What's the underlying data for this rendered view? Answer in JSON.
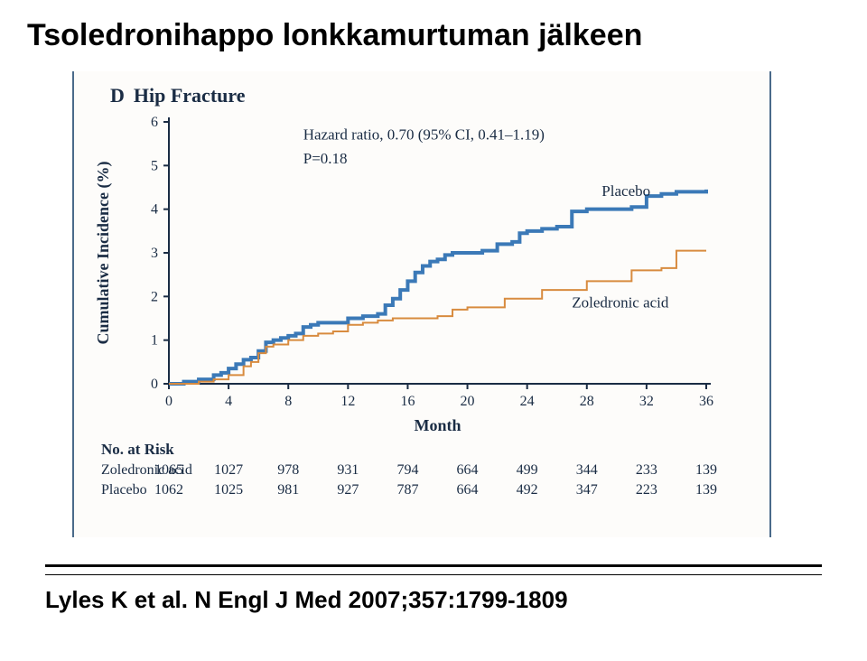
{
  "title": "Tsoledronihappo lonkkamurtuman jälkeen",
  "panel": {
    "letter": "D",
    "label": "Hip Fracture"
  },
  "annot": {
    "hr": "Hazard ratio, 0.70 (95% CI, 0.41–1.19)",
    "p": "P=0.18"
  },
  "chart": {
    "type": "step-line",
    "xlabel": "Month",
    "ylabel": "Cumulative Incidence (%)",
    "xlim": [
      0,
      36
    ],
    "xtick_step": 4,
    "ylim": [
      0,
      6
    ],
    "ytick_step": 1,
    "background": "#fdfcfa",
    "axis_color": "#1a2c44",
    "series": [
      {
        "name": "Placebo",
        "label": "Placebo",
        "color": "#3b79b7",
        "width": 4,
        "label_x": 29,
        "label_y": 4.3,
        "points": [
          [
            0,
            0.0
          ],
          [
            1,
            0.05
          ],
          [
            2,
            0.1
          ],
          [
            3,
            0.2
          ],
          [
            3.5,
            0.25
          ],
          [
            4,
            0.35
          ],
          [
            4.5,
            0.45
          ],
          [
            5,
            0.55
          ],
          [
            5.5,
            0.6
          ],
          [
            6,
            0.75
          ],
          [
            6.5,
            0.95
          ],
          [
            7,
            1.0
          ],
          [
            7.5,
            1.05
          ],
          [
            8,
            1.1
          ],
          [
            8.5,
            1.15
          ],
          [
            9,
            1.3
          ],
          [
            9.5,
            1.35
          ],
          [
            10,
            1.4
          ],
          [
            11,
            1.4
          ],
          [
            12,
            1.5
          ],
          [
            13,
            1.55
          ],
          [
            14,
            1.6
          ],
          [
            14.5,
            1.8
          ],
          [
            15,
            1.95
          ],
          [
            15.5,
            2.15
          ],
          [
            16,
            2.35
          ],
          [
            16.5,
            2.55
          ],
          [
            17,
            2.7
          ],
          [
            17.5,
            2.8
          ],
          [
            18,
            2.85
          ],
          [
            18.5,
            2.95
          ],
          [
            19,
            3.0
          ],
          [
            20,
            3.0
          ],
          [
            21,
            3.05
          ],
          [
            22,
            3.2
          ],
          [
            23,
            3.25
          ],
          [
            23.5,
            3.45
          ],
          [
            24,
            3.5
          ],
          [
            25,
            3.55
          ],
          [
            26,
            3.6
          ],
          [
            27,
            3.95
          ],
          [
            28,
            4.0
          ],
          [
            30,
            4.0
          ],
          [
            31,
            4.05
          ],
          [
            32,
            4.3
          ],
          [
            33,
            4.35
          ],
          [
            34,
            4.4
          ],
          [
            35,
            4.4
          ],
          [
            36,
            4.45
          ]
        ]
      },
      {
        "name": "Zoledronic acid",
        "label": "Zoledronic acid",
        "color": "#d88b3f",
        "width": 2,
        "label_x": 27,
        "label_y": 1.75,
        "points": [
          [
            0,
            0.0
          ],
          [
            2,
            0.05
          ],
          [
            3,
            0.1
          ],
          [
            4,
            0.2
          ],
          [
            5,
            0.4
          ],
          [
            5.5,
            0.5
          ],
          [
            6,
            0.7
          ],
          [
            6.5,
            0.85
          ],
          [
            7,
            0.9
          ],
          [
            8,
            1.0
          ],
          [
            9,
            1.1
          ],
          [
            10,
            1.15
          ],
          [
            11,
            1.2
          ],
          [
            12,
            1.35
          ],
          [
            13,
            1.4
          ],
          [
            14,
            1.45
          ],
          [
            15,
            1.5
          ],
          [
            17,
            1.5
          ],
          [
            18,
            1.55
          ],
          [
            19,
            1.7
          ],
          [
            20,
            1.75
          ],
          [
            22,
            1.75
          ],
          [
            22.5,
            1.95
          ],
          [
            24,
            1.95
          ],
          [
            25,
            2.15
          ],
          [
            27,
            2.15
          ],
          [
            28,
            2.35
          ],
          [
            30,
            2.35
          ],
          [
            31,
            2.6
          ],
          [
            32,
            2.6
          ],
          [
            33,
            2.65
          ],
          [
            34,
            3.05
          ],
          [
            36,
            3.05
          ]
        ]
      }
    ]
  },
  "risk": {
    "header": "No. at Risk",
    "x_values": [
      0,
      4,
      8,
      12,
      16,
      20,
      24,
      28,
      32,
      36
    ],
    "rows": [
      {
        "label": "Zoledronic acid",
        "values": [
          1065,
          1027,
          978,
          931,
          794,
          664,
          499,
          344,
          233,
          139
        ]
      },
      {
        "label": "Placebo",
        "values": [
          1062,
          1025,
          981,
          927,
          787,
          664,
          492,
          347,
          223,
          139
        ]
      }
    ]
  },
  "citation": "Lyles K et al. N Engl J Med 2007;357:1799-1809"
}
